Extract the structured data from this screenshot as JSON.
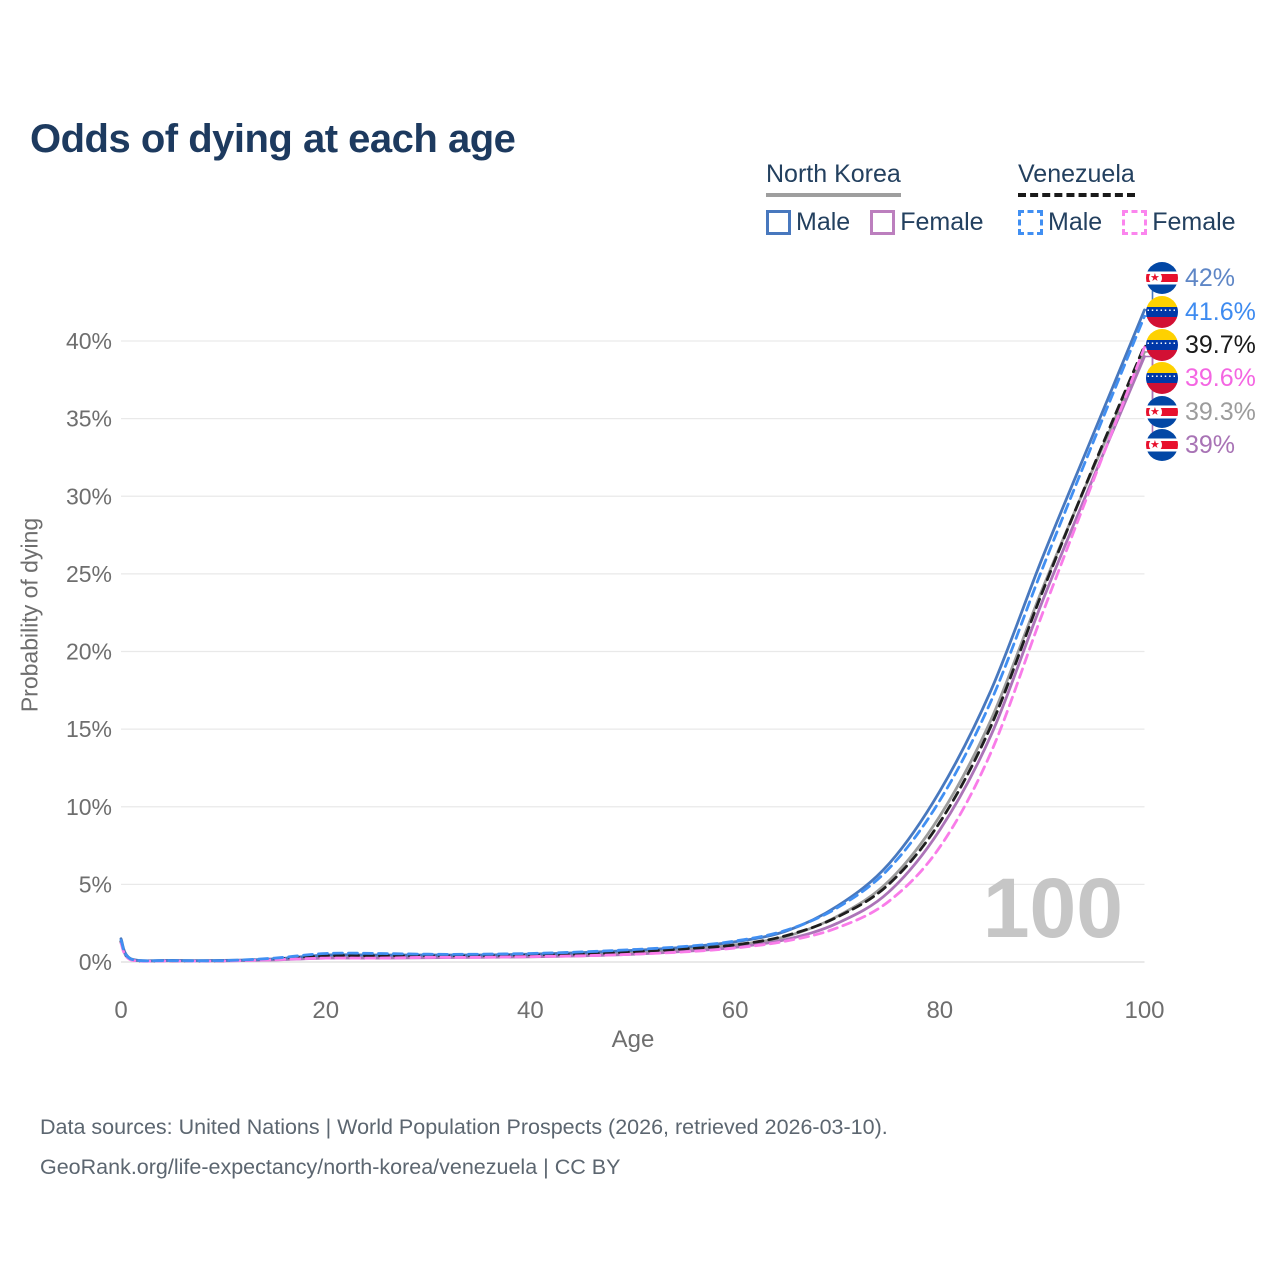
{
  "title": "Odds of dying at each age",
  "legend": {
    "groups": [
      {
        "country": "North Korea",
        "items": [
          {
            "label": "Male"
          },
          {
            "label": "Female"
          }
        ]
      },
      {
        "country": "Venezuela",
        "items": [
          {
            "label": "Male"
          },
          {
            "label": "Female"
          }
        ]
      }
    ]
  },
  "watermark_age": "100",
  "footer": {
    "line1": "Data sources: United Nations | World Population Prospects (2026, retrieved 2026-03-10).",
    "line2": "GeoRank.org/life-expectancy/north-korea/venezuela | CC BY"
  },
  "chart_data": {
    "type": "line",
    "title": "Odds of dying at each age",
    "xlabel": "Age",
    "ylabel": "Probability of dying",
    "xlim": [
      0,
      100
    ],
    "ylim": [
      0,
      42.5
    ],
    "x_ticks": [
      0,
      20,
      40,
      60,
      80,
      100
    ],
    "y_ticks": [
      "0%",
      "5%",
      "10%",
      "15%",
      "20%",
      "25%",
      "30%",
      "35%",
      "40%"
    ],
    "grid": "horizontal",
    "legend_position": "top-right",
    "ages": [
      0,
      1,
      5,
      10,
      15,
      20,
      25,
      30,
      35,
      40,
      45,
      50,
      55,
      60,
      65,
      70,
      75,
      80,
      85,
      90,
      95,
      100
    ],
    "series": [
      {
        "id": "nk-male",
        "name": "North Korea Male",
        "country": "North Korea",
        "sex": "Male",
        "line": "solid",
        "color": "#4878be",
        "label_color": "#5e86c6",
        "end_label": "42%",
        "values": [
          1.5,
          0.2,
          0.1,
          0.1,
          0.2,
          0.45,
          0.45,
          0.45,
          0.45,
          0.5,
          0.6,
          0.75,
          0.95,
          1.3,
          2.0,
          3.6,
          6.3,
          11.0,
          17.5,
          26.0,
          34.0,
          42.0
        ]
      },
      {
        "id": "ve-male",
        "name": "Venezuela Male",
        "country": "Venezuela",
        "sex": "Male",
        "line": "dashed",
        "color": "#418ff2",
        "label_color": "#3e8bf0",
        "end_label": "41.6%",
        "values": [
          1.4,
          0.18,
          0.09,
          0.09,
          0.25,
          0.55,
          0.55,
          0.5,
          0.5,
          0.55,
          0.65,
          0.8,
          1.0,
          1.35,
          2.05,
          3.5,
          6.0,
          10.4,
          16.8,
          25.3,
          33.5,
          41.6
        ]
      },
      {
        "id": "ve-both",
        "name": "Venezuela",
        "country": "Venezuela",
        "sex": "Both",
        "line": "dashed",
        "color": "#1f1f1f",
        "label_color": "#1a1a1a",
        "end_label": "39.7%",
        "values": [
          1.3,
          0.15,
          0.08,
          0.08,
          0.2,
          0.4,
          0.4,
          0.4,
          0.4,
          0.45,
          0.5,
          0.65,
          0.85,
          1.1,
          1.7,
          2.9,
          5.0,
          9.0,
          15.2,
          23.8,
          31.9,
          39.7
        ]
      },
      {
        "id": "ve-female",
        "name": "Venezuela Female",
        "country": "Venezuela",
        "sex": "Female",
        "line": "dashed",
        "color": "#f97ce9",
        "label_color": "#f466e2",
        "end_label": "39.6%",
        "values": [
          1.2,
          0.13,
          0.07,
          0.07,
          0.15,
          0.25,
          0.25,
          0.3,
          0.3,
          0.35,
          0.4,
          0.5,
          0.65,
          0.9,
          1.35,
          2.2,
          3.9,
          7.4,
          13.5,
          22.4,
          31.0,
          39.6
        ]
      },
      {
        "id": "nk-both",
        "name": "North Korea",
        "country": "North Korea",
        "sex": "Both",
        "line": "solid",
        "color": "#9c9c9c",
        "label_color": "#9c9c9c",
        "end_label": "39.3%",
        "values": [
          1.4,
          0.17,
          0.09,
          0.09,
          0.17,
          0.35,
          0.35,
          0.35,
          0.35,
          0.4,
          0.5,
          0.6,
          0.8,
          1.1,
          1.65,
          2.95,
          5.2,
          9.4,
          15.6,
          24.0,
          31.8,
          39.3
        ]
      },
      {
        "id": "nk-female",
        "name": "North Korea Female",
        "country": "North Korea",
        "sex": "Female",
        "line": "solid",
        "color": "#ac74b8",
        "label_color": "#a873b5",
        "end_label": "39%",
        "values": [
          1.3,
          0.15,
          0.08,
          0.08,
          0.13,
          0.25,
          0.25,
          0.28,
          0.3,
          0.33,
          0.4,
          0.5,
          0.68,
          0.95,
          1.45,
          2.5,
          4.5,
          8.5,
          14.6,
          23.2,
          31.2,
          39.0
        ]
      }
    ]
  }
}
